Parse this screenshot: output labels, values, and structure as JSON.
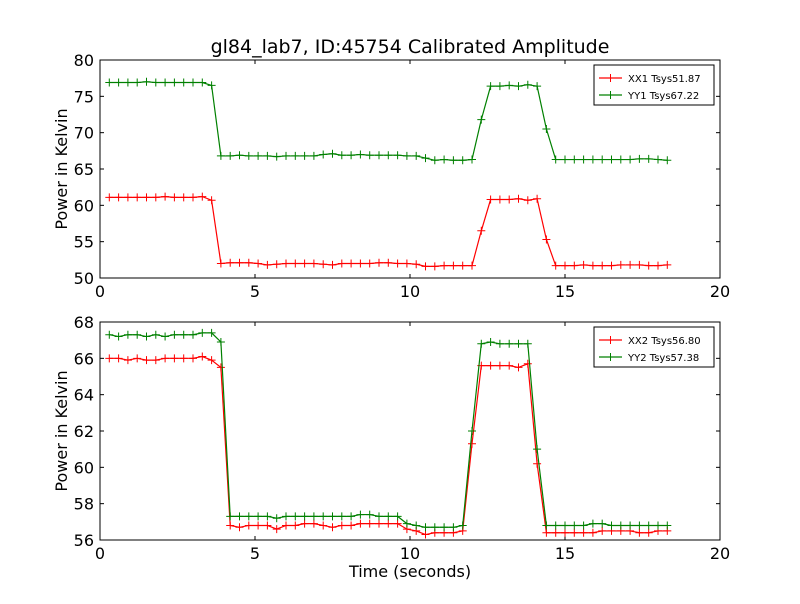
{
  "chart_data": {
    "title": "gl84_lab7, ID:45754 Calibrated Amplitude",
    "xlabel": "Time (seconds)",
    "panels": [
      {
        "type": "line",
        "ylabel": "Power in Kelvin",
        "xlim": [
          0,
          20
        ],
        "ylim": [
          50,
          80
        ],
        "xticks": [
          0,
          5,
          10,
          15,
          20
        ],
        "yticks": [
          50,
          55,
          60,
          65,
          70,
          75,
          80
        ],
        "legend": "top-right",
        "series": [
          {
            "name": "XX1 Tsys51.87",
            "color": "#ff0000",
            "x": [
              0.3,
              0.6,
              0.9,
              1.2,
              1.5,
              1.8,
              2.1,
              2.4,
              2.7,
              3.0,
              3.3,
              3.6,
              3.9,
              4.2,
              4.5,
              4.8,
              5.1,
              5.4,
              5.7,
              6.0,
              6.3,
              6.6,
              6.9,
              7.2,
              7.5,
              7.8,
              8.1,
              8.4,
              8.7,
              9.0,
              9.3,
              9.6,
              9.9,
              10.2,
              10.5,
              10.8,
              11.1,
              11.4,
              11.7,
              12.0,
              12.3,
              12.6,
              12.9,
              13.2,
              13.5,
              13.8,
              14.1,
              14.4,
              14.7,
              15.0,
              15.3,
              15.6,
              15.9,
              16.2,
              16.5,
              16.8,
              17.1,
              17.4,
              17.7,
              18.0,
              18.3
            ],
            "values": [
              61.1,
              61.1,
              61.1,
              61.1,
              61.1,
              61.1,
              61.2,
              61.1,
              61.1,
              61.1,
              61.2,
              60.7,
              52.0,
              52.1,
              52.1,
              52.1,
              52.0,
              51.8,
              51.9,
              52.0,
              52.0,
              52.0,
              52.0,
              51.9,
              51.8,
              52.0,
              52.0,
              52.0,
              52.0,
              52.1,
              52.1,
              52.0,
              52.0,
              51.9,
              51.6,
              51.6,
              51.7,
              51.7,
              51.7,
              51.7,
              56.5,
              60.8,
              60.8,
              60.8,
              60.9,
              60.7,
              60.9,
              55.3,
              51.7,
              51.7,
              51.7,
              51.8,
              51.7,
              51.7,
              51.7,
              51.8,
              51.8,
              51.8,
              51.7,
              51.7,
              51.8
            ]
          },
          {
            "name": "YY1 Tsys67.22",
            "color": "#008000",
            "x": [
              0.3,
              0.6,
              0.9,
              1.2,
              1.5,
              1.8,
              2.1,
              2.4,
              2.7,
              3.0,
              3.3,
              3.6,
              3.9,
              4.2,
              4.5,
              4.8,
              5.1,
              5.4,
              5.7,
              6.0,
              6.3,
              6.6,
              6.9,
              7.2,
              7.5,
              7.8,
              8.1,
              8.4,
              8.7,
              9.0,
              9.3,
              9.6,
              9.9,
              10.2,
              10.5,
              10.8,
              11.1,
              11.4,
              11.7,
              12.0,
              12.3,
              12.6,
              12.9,
              13.2,
              13.5,
              13.8,
              14.1,
              14.4,
              14.7,
              15.0,
              15.3,
              15.6,
              15.9,
              16.2,
              16.5,
              16.8,
              17.1,
              17.4,
              17.7,
              18.0,
              18.3
            ],
            "values": [
              76.9,
              76.9,
              76.9,
              76.9,
              77.0,
              76.9,
              76.9,
              76.9,
              76.9,
              76.9,
              76.9,
              76.5,
              66.8,
              66.8,
              66.9,
              66.8,
              66.8,
              66.8,
              66.7,
              66.8,
              66.8,
              66.8,
              66.8,
              67.0,
              67.1,
              66.9,
              66.9,
              67.0,
              66.9,
              66.9,
              66.9,
              66.9,
              66.8,
              66.8,
              66.5,
              66.2,
              66.3,
              66.2,
              66.2,
              66.3,
              71.8,
              76.4,
              76.4,
              76.5,
              76.4,
              76.6,
              76.4,
              70.5,
              66.3,
              66.3,
              66.3,
              66.3,
              66.3,
              66.3,
              66.3,
              66.3,
              66.3,
              66.4,
              66.4,
              66.3,
              66.2
            ]
          }
        ]
      },
      {
        "type": "line",
        "ylabel": "Power in Kelvin",
        "xlabel": "Time (seconds)",
        "xlim": [
          0,
          20
        ],
        "ylim": [
          56,
          68
        ],
        "xticks": [
          0,
          5,
          10,
          15,
          20
        ],
        "yticks": [
          56,
          58,
          60,
          62,
          64,
          66,
          68
        ],
        "legend": "top-right",
        "series": [
          {
            "name": "XX2 Tsys56.80",
            "color": "#ff0000",
            "x": [
              0.3,
              0.6,
              0.9,
              1.2,
              1.5,
              1.8,
              2.1,
              2.4,
              2.7,
              3.0,
              3.3,
              3.6,
              3.9,
              4.2,
              4.5,
              4.8,
              5.1,
              5.4,
              5.7,
              6.0,
              6.3,
              6.6,
              6.9,
              7.2,
              7.5,
              7.8,
              8.1,
              8.4,
              8.7,
              9.0,
              9.3,
              9.6,
              9.9,
              10.2,
              10.5,
              10.8,
              11.1,
              11.4,
              11.7,
              12.0,
              12.3,
              12.6,
              12.9,
              13.2,
              13.5,
              13.8,
              14.1,
              14.4,
              14.7,
              15.0,
              15.3,
              15.6,
              15.9,
              16.2,
              16.5,
              16.8,
              17.1,
              17.4,
              17.7,
              18.0,
              18.3
            ],
            "values": [
              66.0,
              66.0,
              65.9,
              66.0,
              65.9,
              65.9,
              66.0,
              66.0,
              66.0,
              66.0,
              66.1,
              65.9,
              65.5,
              56.8,
              56.7,
              56.8,
              56.8,
              56.8,
              56.6,
              56.8,
              56.8,
              56.9,
              56.9,
              56.8,
              56.7,
              56.8,
              56.8,
              56.9,
              56.9,
              56.9,
              56.9,
              56.9,
              56.6,
              56.5,
              56.3,
              56.4,
              56.4,
              56.4,
              56.5,
              61.3,
              65.6,
              65.6,
              65.6,
              65.6,
              65.5,
              65.7,
              60.2,
              56.4,
              56.4,
              56.4,
              56.4,
              56.4,
              56.4,
              56.5,
              56.5,
              56.5,
              56.5,
              56.4,
              56.4,
              56.5,
              56.5
            ]
          },
          {
            "name": "YY2 Tsys57.38",
            "color": "#008000",
            "x": [
              0.3,
              0.6,
              0.9,
              1.2,
              1.5,
              1.8,
              2.1,
              2.4,
              2.7,
              3.0,
              3.3,
              3.6,
              3.9,
              4.2,
              4.5,
              4.8,
              5.1,
              5.4,
              5.7,
              6.0,
              6.3,
              6.6,
              6.9,
              7.2,
              7.5,
              7.8,
              8.1,
              8.4,
              8.7,
              9.0,
              9.3,
              9.6,
              9.9,
              10.2,
              10.5,
              10.8,
              11.1,
              11.4,
              11.7,
              12.0,
              12.3,
              12.6,
              12.9,
              13.2,
              13.5,
              13.8,
              14.1,
              14.4,
              14.7,
              15.0,
              15.3,
              15.6,
              15.9,
              16.2,
              16.5,
              16.8,
              17.1,
              17.4,
              17.7,
              18.0,
              18.3
            ],
            "values": [
              67.3,
              67.2,
              67.3,
              67.3,
              67.2,
              67.3,
              67.2,
              67.3,
              67.3,
              67.3,
              67.4,
              67.4,
              66.9,
              57.3,
              57.3,
              57.3,
              57.3,
              57.3,
              57.2,
              57.3,
              57.3,
              57.3,
              57.3,
              57.3,
              57.3,
              57.3,
              57.3,
              57.4,
              57.4,
              57.3,
              57.3,
              57.3,
              56.9,
              56.8,
              56.7,
              56.7,
              56.7,
              56.7,
              56.8,
              62.0,
              66.8,
              66.9,
              66.8,
              66.8,
              66.8,
              66.8,
              61.0,
              56.8,
              56.8,
              56.8,
              56.8,
              56.8,
              56.9,
              56.9,
              56.8,
              56.8,
              56.8,
              56.8,
              56.8,
              56.8,
              56.8
            ]
          }
        ]
      }
    ]
  }
}
